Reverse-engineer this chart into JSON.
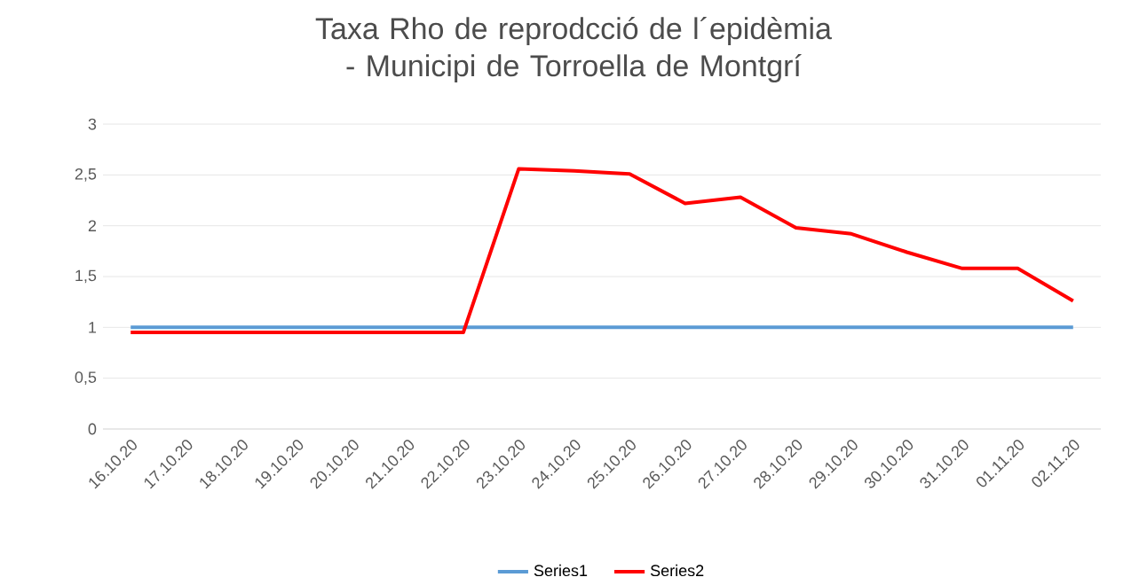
{
  "chart_data": {
    "type": "line",
    "title": "Taxa Rho de reprodcció de l´epidèmia - Municipi de Torroella de Montgrí",
    "categories": [
      "16.10.20",
      "17.10.20",
      "18.10.20",
      "19.10.20",
      "20.10.20",
      "21.10.20",
      "22.10.20",
      "23.10.20",
      "24.10.20",
      "25.10.20",
      "26.10.20",
      "27.10.20",
      "28.10.20",
      "29.10.20",
      "30.10.20",
      "31.10.20",
      "01.11.20",
      "02.11.20"
    ],
    "series": [
      {
        "name": "Series1",
        "color": "#5b9bd5",
        "values": [
          1,
          1,
          1,
          1,
          1,
          1,
          1,
          1,
          1,
          1,
          1,
          1,
          1,
          1,
          1,
          1,
          1,
          1
        ]
      },
      {
        "name": "Series2",
        "color": "#ff0000",
        "values": [
          0.95,
          0.95,
          0.95,
          0.95,
          0.95,
          0.95,
          0.95,
          2.56,
          2.54,
          2.51,
          2.22,
          2.28,
          1.98,
          1.92,
          1.74,
          1.58,
          1.58,
          1.26
        ]
      }
    ],
    "ylim": [
      0,
      3
    ],
    "yticks": [
      0,
      {
        "value": 0.5,
        "label": "0,5"
      },
      1,
      {
        "value": 1.5,
        "label": "1,5"
      },
      2,
      {
        "value": 2.5,
        "label": "2,5"
      },
      3
    ],
    "grid": "y",
    "legend": "bottom",
    "marker": "none",
    "line_style": "solid"
  }
}
